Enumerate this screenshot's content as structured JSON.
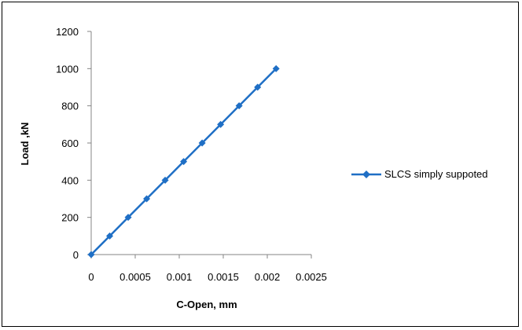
{
  "chart_data": {
    "type": "line",
    "title": "",
    "xlabel": "C-Open, mm",
    "ylabel": "Load ,kN",
    "xlim": [
      0,
      0.0025
    ],
    "ylim": [
      0,
      1200
    ],
    "xticks": [
      "0",
      "0.0005",
      "0.001",
      "0.0015",
      "0.002",
      "0.0025"
    ],
    "yticks": [
      "0",
      "200",
      "400",
      "600",
      "800",
      "1000",
      "1200"
    ],
    "grid": false,
    "legend_position": "right",
    "series": [
      {
        "name": "SLCS simply suppoted",
        "color": "#1f6fc5",
        "marker": "diamond",
        "x": [
          0,
          0.00021,
          0.00042,
          0.00063,
          0.00084,
          0.00105,
          0.00126,
          0.00147,
          0.00168,
          0.00189,
          0.0021
        ],
        "y": [
          0,
          100,
          200,
          300,
          400,
          500,
          600,
          700,
          800,
          900,
          1000
        ]
      }
    ]
  }
}
